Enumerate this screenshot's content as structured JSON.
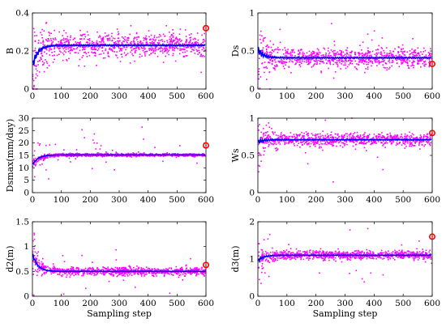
{
  "chart_data": {
    "type": "scatter",
    "shared_x": {
      "label": "Sampling step",
      "ticks": [
        0,
        100,
        200,
        300,
        400,
        500,
        600
      ],
      "xlim": [
        0,
        600
      ]
    },
    "panels": [
      {
        "id": "B",
        "ylabel": "B",
        "ylim": [
          0,
          0.4
        ],
        "yticks": [
          "0",
          "0.2",
          "0.4"
        ],
        "ytick_values": [
          0,
          0.2,
          0.4
        ],
        "converged_value": 0.23,
        "initial_value": 0.12,
        "spread": 0.03,
        "true_value": 0.32,
        "true_x": 600
      },
      {
        "id": "Ds",
        "ylabel": "Ds",
        "ylim": [
          0,
          1
        ],
        "yticks": [
          "0",
          "0.5",
          "1"
        ],
        "ytick_values": [
          0,
          0.5,
          1
        ],
        "converged_value": 0.41,
        "initial_value": 0.52,
        "spread": 0.06,
        "true_value": 0.33,
        "true_x": 600
      },
      {
        "id": "Dsmax",
        "ylabel": "Dsmax(mm/day)",
        "ylim": [
          0,
          30
        ],
        "yticks": [
          "0",
          "5",
          "10",
          "15",
          "20",
          "25",
          "30"
        ],
        "ytick_values": [
          0,
          5,
          10,
          15,
          20,
          25,
          30
        ],
        "converged_value": 15.2,
        "initial_value": 11,
        "spread": 0.3,
        "true_value": 19,
        "true_x": 600
      },
      {
        "id": "Ws",
        "ylabel": "Ws",
        "ylim": [
          0,
          1
        ],
        "yticks": [
          "0",
          "0.5",
          "1"
        ],
        "ytick_values": [
          0,
          0.5,
          1
        ],
        "converged_value": 0.71,
        "initial_value": 0.68,
        "spread": 0.04,
        "true_value": 0.8,
        "true_x": 600
      },
      {
        "id": "d2",
        "ylabel": "d2(m)",
        "ylim": [
          0,
          1.5
        ],
        "yticks": [
          "0",
          "0.5",
          "1",
          "1.5"
        ],
        "ytick_values": [
          0,
          0.5,
          1,
          1.5
        ],
        "converged_value": 0.5,
        "initial_value": 0.85,
        "spread": 0.04,
        "true_value": 0.63,
        "true_x": 600
      },
      {
        "id": "d3",
        "ylabel": "d3(m)",
        "ylim": [
          0,
          2
        ],
        "yticks": [
          "0",
          "1",
          "2"
        ],
        "ytick_values": [
          0,
          1,
          2
        ],
        "converged_value": 1.1,
        "initial_value": 0.95,
        "spread": 0.06,
        "true_value": 1.6,
        "true_x": 600
      }
    ],
    "series": [
      {
        "marker": "dot",
        "color": "#ff00ff"
      },
      {
        "marker": "line",
        "color": "#0000ff"
      },
      {
        "marker": "circle",
        "color": "#ff0000"
      }
    ],
    "grid": false
  }
}
